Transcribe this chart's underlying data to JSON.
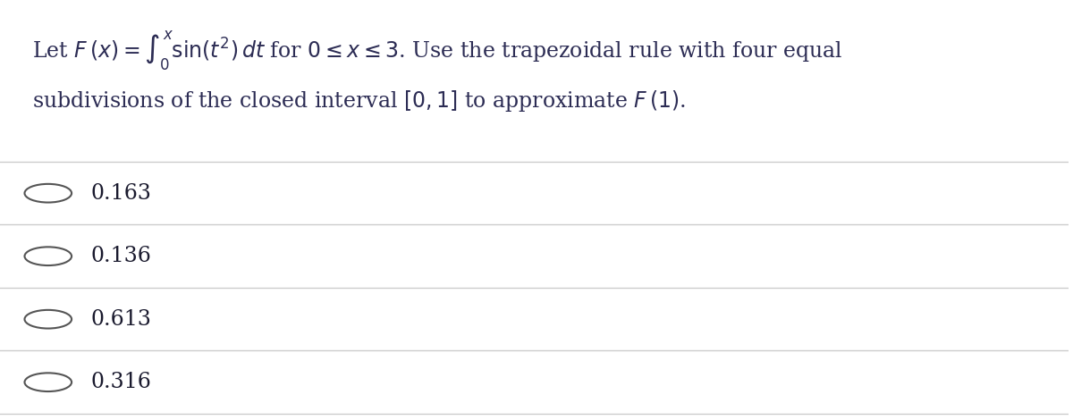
{
  "background_color": "#ffffff",
  "question_line1": "Let $F\\,(x) = \\int_0^x \\sin(t^2)\\,dt$ for $0 \\leq x \\leq 3$. Use the trapezoidal rule with four equal",
  "question_line2": "subdivisions of the closed interval $[0, 1]$ to approximate $F\\,(1)$.",
  "options": [
    "0.163",
    "0.136",
    "0.613",
    "0.316"
  ],
  "line_color": "#cccccc",
  "text_color": "#2c2c54",
  "option_text_color": "#1a1a2e",
  "circle_color": "#555555",
  "font_size_question": 17,
  "font_size_options": 17
}
